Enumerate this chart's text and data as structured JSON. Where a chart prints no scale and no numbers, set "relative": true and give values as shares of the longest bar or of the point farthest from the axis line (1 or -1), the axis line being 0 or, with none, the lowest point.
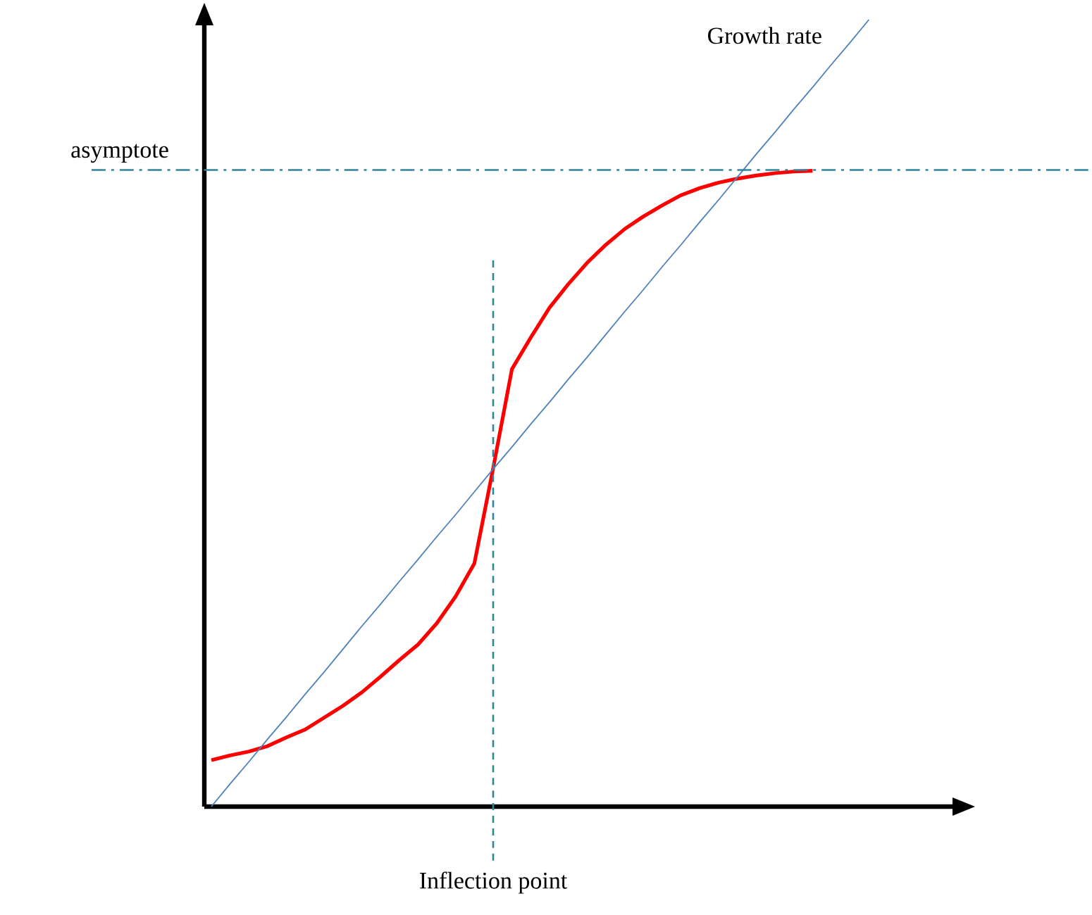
{
  "chart_data": {
    "type": "line",
    "relative": true,
    "categories": [
      null,
      null,
      null,
      null,
      null,
      null,
      null,
      null,
      null,
      null,
      null,
      null,
      null,
      null,
      null,
      null,
      null,
      null,
      null,
      null,
      null,
      null,
      null,
      null,
      null,
      null,
      null,
      null,
      null,
      null,
      null,
      null,
      null,
      null,
      null,
      null
    ],
    "series": [
      {
        "color": "#ff0000",
        "values": [
          0.059,
          0.065,
          0.07,
          0.077,
          0.088,
          0.098,
          0.113,
          0.128,
          0.145,
          0.165,
          0.186,
          0.206,
          0.233,
          0.267,
          0.309,
          0.43,
          0.556,
          0.596,
          0.634,
          0.664,
          0.691,
          0.714,
          0.734,
          0.75,
          0.764,
          0.777,
          0.786,
          0.793,
          0.798,
          0.802,
          0.805,
          0.807,
          0.808,
          null,
          null,
          null
        ]
      },
      {
        "name": "Growth rate",
        "color": "#4f81bd",
        "values": [
          0,
          0.029,
          0.057,
          0.086,
          0.114,
          0.143,
          0.171,
          0.2,
          0.229,
          0.257,
          0.286,
          0.314,
          0.343,
          0.371,
          0.4,
          0.429,
          0.457,
          0.486,
          0.514,
          0.543,
          0.571,
          0.6,
          0.629,
          0.657,
          0.686,
          0.714,
          0.743,
          0.771,
          0.8,
          0.829,
          0.857,
          0.886,
          0.914,
          0.943,
          0.971,
          1
        ]
      }
    ],
    "ref_lines": [
      {
        "axis": "y",
        "value": 0.809,
        "label": "asymptote",
        "color": "#31849b",
        "line_style": "dashdot"
      }
    ],
    "annotations": [
      "Inflection point"
    ]
  }
}
